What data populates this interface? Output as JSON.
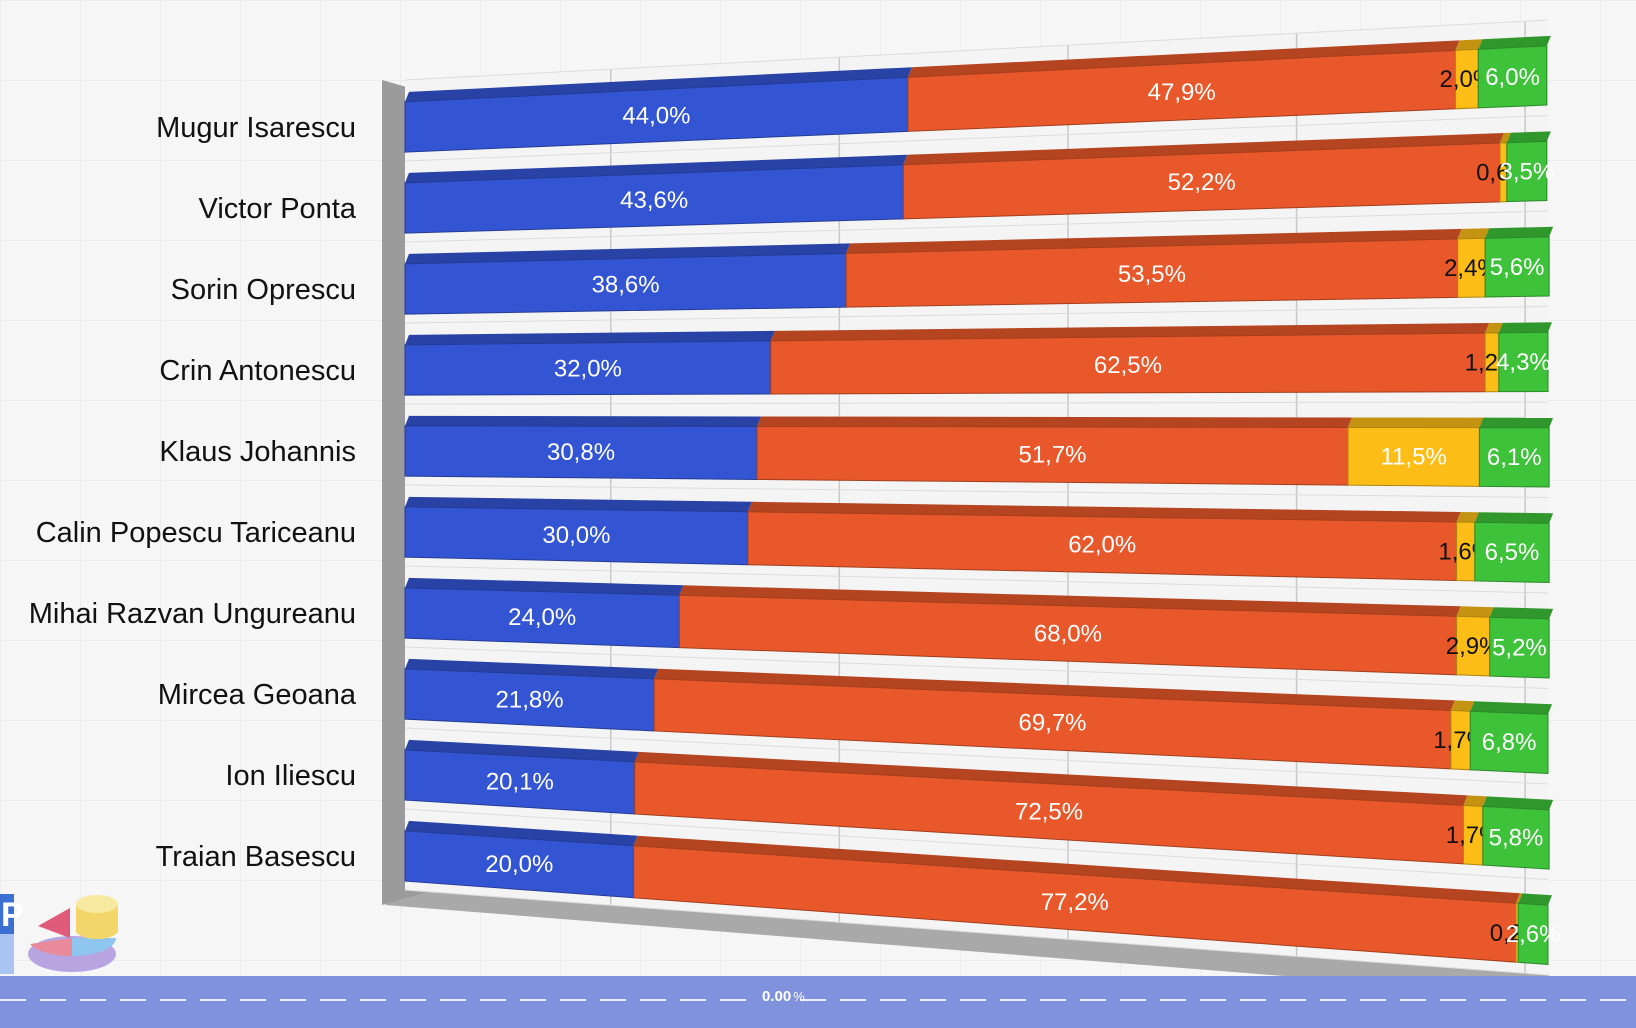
{
  "chart_data": {
    "type": "bar",
    "stacked": true,
    "percent": true,
    "orientation": "horizontal",
    "categories": [
      "Mugur Isarescu",
      "Victor Ponta",
      "Sorin Oprescu",
      "Crin Antonescu",
      "Klaus Johannis",
      "Calin Popescu Tariceanu",
      "Mihai Razvan Ungureanu",
      "Mircea Geoana",
      "Ion Iliescu",
      "Traian Basescu"
    ],
    "series": [
      {
        "color": "#3355d4",
        "values": [
          44.0,
          43.6,
          38.6,
          32.0,
          30.8,
          30.0,
          24.0,
          21.8,
          20.1,
          20.0
        ],
        "labels": [
          "44,0%",
          "43,6%",
          "38,6%",
          "32,0%",
          "30,8%",
          "30,0%",
          "24,0%",
          "21,8%",
          "20,1%",
          "20,0%"
        ]
      },
      {
        "color": "#e8582a",
        "values": [
          47.9,
          52.2,
          53.5,
          62.5,
          51.7,
          62.0,
          68.0,
          69.7,
          72.5,
          77.2
        ],
        "labels": [
          "47,9%",
          "52,2%",
          "53,5%",
          "62,5%",
          "51,7%",
          "62,0%",
          "68,0%",
          "69,7%",
          "72,5%",
          "77,2%"
        ]
      },
      {
        "color": "#fbbd16",
        "values": [
          2.0,
          0.6,
          2.4,
          1.2,
          11.5,
          1.6,
          2.9,
          1.7,
          1.7,
          0.2
        ],
        "labels": [
          "2,0%",
          "0,6%",
          "2,4%",
          "1,2%",
          "11,5%",
          "1,6%",
          "2,9%",
          "1,7%",
          "1,7%",
          "0,2%"
        ]
      },
      {
        "color": "#3dc23a",
        "values": [
          6.0,
          3.5,
          5.6,
          4.3,
          6.1,
          6.5,
          5.2,
          6.8,
          5.8,
          2.6
        ],
        "labels": [
          "6,0%",
          "3,5%",
          "5,6%",
          "4,3%",
          "6,1%",
          "6,5%",
          "5,2%",
          "6,8%",
          "5,8%",
          "2,6%"
        ]
      }
    ],
    "xlim": [
      0,
      100
    ],
    "grid": true,
    "legend": "none"
  },
  "footer": {
    "value": "0.00",
    "unit": "%"
  }
}
